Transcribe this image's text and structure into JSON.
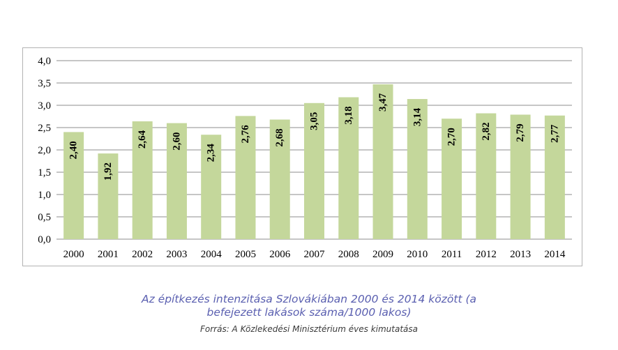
{
  "chart_data": {
    "type": "bar",
    "categories": [
      "2000",
      "2001",
      "2002",
      "2003",
      "2004",
      "2005",
      "2006",
      "2007",
      "2008",
      "2009",
      "2010",
      "2011",
      "2012",
      "2013",
      "2014"
    ],
    "values": [
      2.4,
      1.92,
      2.64,
      2.6,
      2.34,
      2.76,
      2.68,
      3.05,
      3.18,
      3.47,
      3.14,
      2.7,
      2.82,
      2.79,
      2.77
    ],
    "value_labels": [
      "2,40",
      "1,92",
      "2,64",
      "2,60",
      "2,34",
      "2,76",
      "2,68",
      "3,05",
      "3,18",
      "3,47",
      "3,14",
      "2,70",
      "2,82",
      "2,79",
      "2,77"
    ],
    "ylim": [
      0,
      4
    ],
    "yticks": [
      0,
      0.5,
      1,
      1.5,
      2,
      2.5,
      3,
      3.5,
      4
    ],
    "ytick_labels": [
      "0,0",
      "0,5",
      "1,0",
      "1,5",
      "2,0",
      "2,5",
      "3,0",
      "3,5",
      "4,0"
    ],
    "grid": true,
    "bar_color": "#c4d79b",
    "grid_color": "#8c8c8c",
    "title": "",
    "xlabel": "",
    "ylabel": ""
  },
  "caption": {
    "line1": "Az építkezés intenzitása Szlovákiában 2000 és 2014 között (a",
    "line2": "befejezett lakások száma/1000 lakos)",
    "source": "Forrás: A Közlekedési Minisztérium éves kimutatása"
  }
}
